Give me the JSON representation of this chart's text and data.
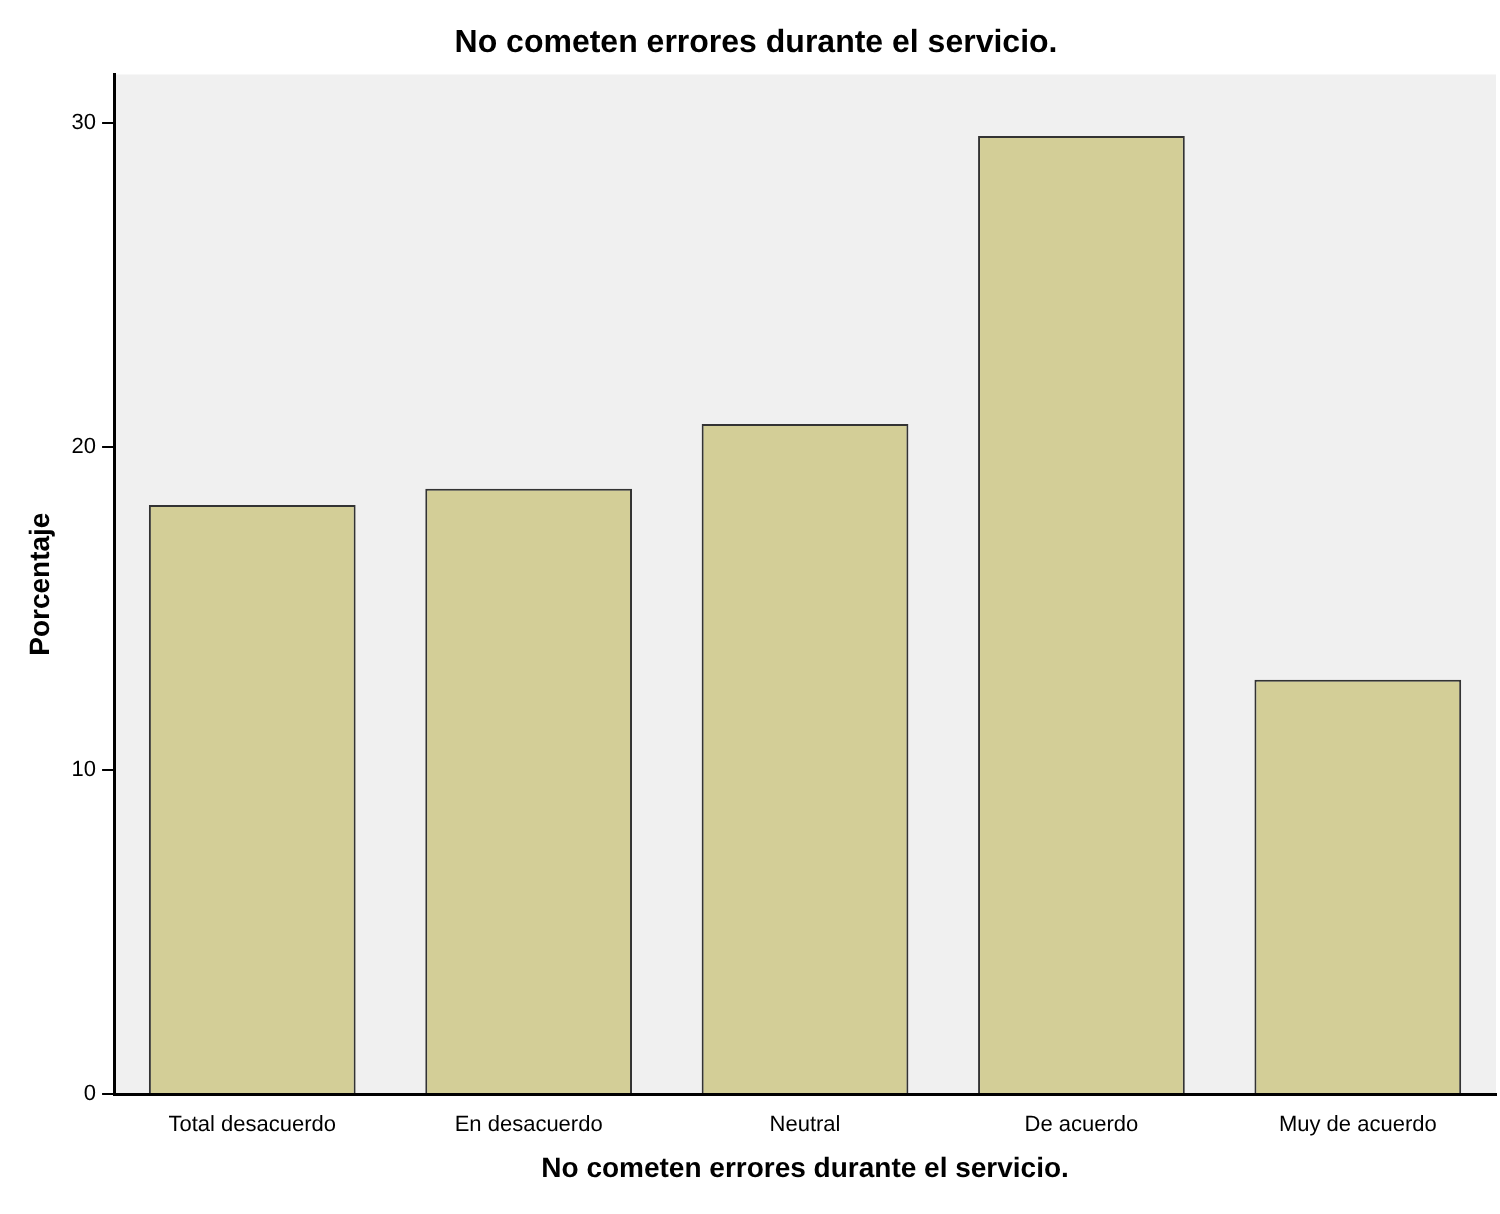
{
  "chart_data": {
    "type": "bar",
    "title": "No cometen errores durante el servicio.",
    "xlabel": "No cometen errores durante el servicio.",
    "ylabel": "Porcentaje",
    "categories": [
      "Total desacuerdo",
      "En desacuerdo",
      "Neutral",
      "De acuerdo",
      "Muy de acuerdo"
    ],
    "values": [
      18.2,
      18.7,
      20.7,
      29.6,
      12.8
    ],
    "color": "#d3ce97",
    "ylim": [
      0,
      31.5
    ],
    "yticks": [
      0,
      10,
      20,
      30
    ],
    "grid": false,
    "legend": false
  }
}
